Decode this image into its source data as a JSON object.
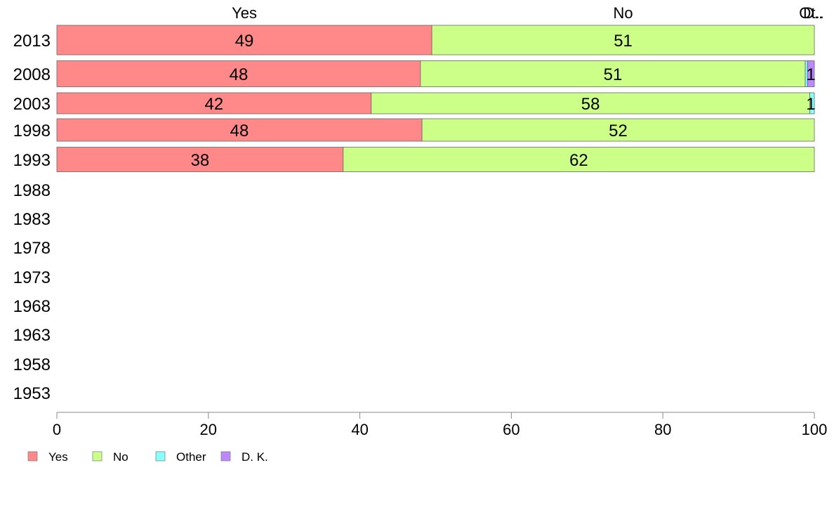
{
  "chart_data": {
    "type": "bar",
    "orientation": "horizontal",
    "stacked": true,
    "categories": [
      "2013",
      "2008",
      "2003",
      "1998",
      "1993",
      "1988",
      "1983",
      "1978",
      "1973",
      "1968",
      "1963",
      "1958",
      "1953"
    ],
    "series": [
      {
        "name": "Yes",
        "color": "#ff8888",
        "values": [
          49.5,
          48.0,
          41.5,
          48.2,
          37.8,
          null,
          null,
          null,
          null,
          null,
          null,
          null,
          null
        ]
      },
      {
        "name": "No",
        "color": "#ccff88",
        "values": [
          50.5,
          50.8,
          57.9,
          51.8,
          62.2,
          null,
          null,
          null,
          null,
          null,
          null,
          null,
          null
        ]
      },
      {
        "name": "Other",
        "color": "#88ffff",
        "values": [
          0,
          0.3,
          0.6,
          0,
          0,
          null,
          null,
          null,
          null,
          null,
          null,
          null,
          null
        ]
      },
      {
        "name": "D. K.",
        "color": "#bb88ff",
        "values": [
          0,
          0.9,
          0,
          0,
          0,
          null,
          null,
          null,
          null,
          null,
          null,
          null,
          null
        ]
      }
    ],
    "data_labels": [
      [
        "49",
        "51",
        "",
        ""
      ],
      [
        "48",
        "51",
        "",
        "1"
      ],
      [
        "42",
        "58",
        "1",
        ""
      ],
      [
        "48",
        "52",
        "",
        ""
      ],
      [
        "38",
        "62",
        "",
        ""
      ]
    ],
    "top_labels": [
      "Yes",
      "No",
      "Ot..",
      "D.."
    ],
    "xlim": [
      0,
      100
    ],
    "xticks": [
      "0",
      "20",
      "40",
      "60",
      "80",
      "100"
    ],
    "title": "",
    "xlabel": "",
    "ylabel": "",
    "grid": false,
    "legend": {
      "position": "bottom-left",
      "entries": [
        "Yes",
        "No",
        "Other",
        "D. K."
      ]
    }
  }
}
